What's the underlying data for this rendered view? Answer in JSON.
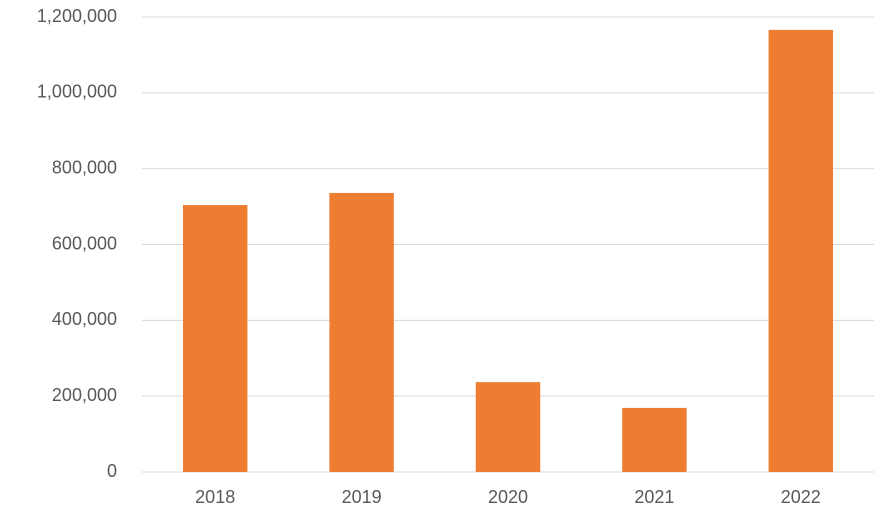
{
  "chart_data": {
    "type": "bar",
    "categories": [
      "2018",
      "2019",
      "2020",
      "2021",
      "2022"
    ],
    "values": [
      704000,
      736000,
      237000,
      169000,
      1166000
    ],
    "color": "#ed7d31",
    "ylim": [
      0,
      1200000
    ],
    "yticks": [
      0,
      {
        "value": 200000,
        "label": "200,000"
      },
      {
        "value": 400000,
        "label": "400,000"
      },
      {
        "value": 600000,
        "label": "600,000"
      },
      {
        "value": 800000,
        "label": "800,000"
      },
      {
        "value": 1000000,
        "label": "1,000,000"
      },
      {
        "value": 1200000,
        "label": "1,200,000"
      }
    ],
    "grid": true
  }
}
